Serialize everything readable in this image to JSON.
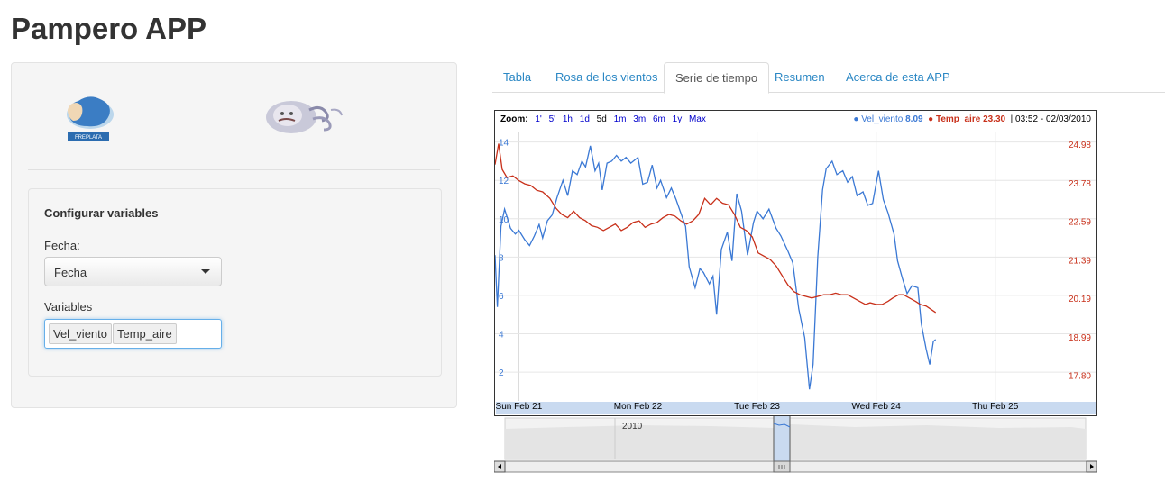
{
  "app": {
    "title": "Pampero APP"
  },
  "sidebar": {
    "logos": [
      {
        "name": "freplata-logo",
        "text": "FREPLATA"
      },
      {
        "name": "pampero-logo"
      }
    ],
    "config": {
      "title": "Configurar variables",
      "fecha_label": "Fecha:",
      "fecha_value": "Fecha",
      "variables_label": "Variables",
      "variables_selected": [
        "Vel_viento",
        "Temp_aire"
      ]
    }
  },
  "tabs": [
    {
      "label": "Tabla",
      "active": false
    },
    {
      "label": "Rosa de los vientos",
      "active": false
    },
    {
      "label": "Serie de tiempo",
      "active": true
    },
    {
      "label": "Resumen",
      "active": false
    },
    {
      "label": "Acerca de esta APP",
      "active": false
    }
  ],
  "chart_data": {
    "type": "line",
    "zoom": {
      "label": "Zoom:",
      "options": [
        "1'",
        "5'",
        "1h",
        "1d",
        "5d",
        "1m",
        "3m",
        "6m",
        "1y",
        "Max"
      ],
      "current": "5d"
    },
    "legend": {
      "series": [
        {
          "name": "Vel_viento",
          "value": "8.09",
          "color": "#3a78d4"
        },
        {
          "name": "Temp_aire",
          "value": "23.30",
          "color": "#c8301a"
        }
      ],
      "timestamp": "03:52 - 02/03/2010"
    },
    "x_labels": [
      "Sun Feb 21",
      "Mon Feb 22",
      "Tue Feb 23",
      "Wed Feb 24",
      "Thu Feb 25"
    ],
    "x_range_days": [
      20.8,
      25.85
    ],
    "y_left": {
      "ticks": [
        2,
        4,
        6,
        8,
        10,
        12,
        14
      ],
      "range": [
        0.5,
        14.5
      ],
      "color": "#3a78d4"
    },
    "y_right": {
      "ticks": [
        "17.80",
        "18.99",
        "20.19",
        "21.39",
        "22.59",
        "23.78",
        "24.98"
      ],
      "range": [
        17.0,
        25.35
      ],
      "color": "#c8301a"
    },
    "grid": true,
    "series": [
      {
        "name": "Vel_viento",
        "axis": "left",
        "color": "#3a78d4",
        "points": [
          [
            20.8,
            8.1
          ],
          [
            20.82,
            5.4
          ],
          [
            20.85,
            9.6
          ],
          [
            20.88,
            10.5
          ],
          [
            20.93,
            9.5
          ],
          [
            20.97,
            9.2
          ],
          [
            21.0,
            9.4
          ],
          [
            21.05,
            8.9
          ],
          [
            21.09,
            8.6
          ],
          [
            21.13,
            9.1
          ],
          [
            21.17,
            9.7
          ],
          [
            21.2,
            9.0
          ],
          [
            21.24,
            9.9
          ],
          [
            21.28,
            10.2
          ],
          [
            21.32,
            11.1
          ],
          [
            21.37,
            12.0
          ],
          [
            21.41,
            11.2
          ],
          [
            21.45,
            12.5
          ],
          [
            21.49,
            12.3
          ],
          [
            21.53,
            13.0
          ],
          [
            21.56,
            12.7
          ],
          [
            21.6,
            13.8
          ],
          [
            21.64,
            12.5
          ],
          [
            21.67,
            12.9
          ],
          [
            21.7,
            11.5
          ],
          [
            21.74,
            12.9
          ],
          [
            21.78,
            13.0
          ],
          [
            21.82,
            13.3
          ],
          [
            21.86,
            13.0
          ],
          [
            21.9,
            13.2
          ],
          [
            21.94,
            12.9
          ],
          [
            22.0,
            13.2
          ],
          [
            22.04,
            11.8
          ],
          [
            22.08,
            11.9
          ],
          [
            22.12,
            12.8
          ],
          [
            22.16,
            11.6
          ],
          [
            22.19,
            12.0
          ],
          [
            22.24,
            11.1
          ],
          [
            22.28,
            11.6
          ],
          [
            22.32,
            11.0
          ],
          [
            22.36,
            10.3
          ],
          [
            22.4,
            9.6
          ],
          [
            22.43,
            7.5
          ],
          [
            22.48,
            6.4
          ],
          [
            22.52,
            7.4
          ],
          [
            22.55,
            7.2
          ],
          [
            22.6,
            6.6
          ],
          [
            22.63,
            7.0
          ],
          [
            22.66,
            5.0
          ],
          [
            22.7,
            8.4
          ],
          [
            22.75,
            9.3
          ],
          [
            22.79,
            7.8
          ],
          [
            22.83,
            11.3
          ],
          [
            22.87,
            10.4
          ],
          [
            22.92,
            8.1
          ],
          [
            22.97,
            9.8
          ],
          [
            23.0,
            10.4
          ],
          [
            23.05,
            10.0
          ],
          [
            23.1,
            10.5
          ],
          [
            23.16,
            9.5
          ],
          [
            23.2,
            9.1
          ],
          [
            23.26,
            8.3
          ],
          [
            23.3,
            7.7
          ],
          [
            23.35,
            5.3
          ],
          [
            23.4,
            3.8
          ],
          [
            23.44,
            1.1
          ],
          [
            23.47,
            2.4
          ],
          [
            23.51,
            8.0
          ],
          [
            23.55,
            11.5
          ],
          [
            23.58,
            12.6
          ],
          [
            23.63,
            13.0
          ],
          [
            23.67,
            12.3
          ],
          [
            23.72,
            12.5
          ],
          [
            23.76,
            11.9
          ],
          [
            23.8,
            12.2
          ],
          [
            23.84,
            11.2
          ],
          [
            23.89,
            11.4
          ],
          [
            23.93,
            10.7
          ],
          [
            23.97,
            10.8
          ],
          [
            24.02,
            12.5
          ],
          [
            24.06,
            11.0
          ],
          [
            24.1,
            10.3
          ],
          [
            24.15,
            9.2
          ],
          [
            24.18,
            7.8
          ],
          [
            24.22,
            6.9
          ],
          [
            24.26,
            6.1
          ],
          [
            24.3,
            6.5
          ],
          [
            24.35,
            6.4
          ],
          [
            24.38,
            4.5
          ],
          [
            24.42,
            3.2
          ],
          [
            24.45,
            2.4
          ],
          [
            24.48,
            3.6
          ],
          [
            24.5,
            3.7
          ]
        ]
      },
      {
        "name": "Temp_aire",
        "axis": "right",
        "color": "#c8301a",
        "points": [
          [
            20.8,
            24.35
          ],
          [
            20.83,
            25.0
          ],
          [
            20.86,
            24.2
          ],
          [
            20.9,
            23.95
          ],
          [
            20.95,
            24.0
          ],
          [
            21.0,
            23.85
          ],
          [
            21.05,
            23.75
          ],
          [
            21.1,
            23.7
          ],
          [
            21.15,
            23.55
          ],
          [
            21.2,
            23.5
          ],
          [
            21.26,
            23.3
          ],
          [
            21.31,
            23.0
          ],
          [
            21.36,
            22.8
          ],
          [
            21.41,
            22.7
          ],
          [
            21.46,
            22.9
          ],
          [
            21.51,
            22.7
          ],
          [
            21.56,
            22.6
          ],
          [
            21.61,
            22.45
          ],
          [
            21.66,
            22.4
          ],
          [
            21.71,
            22.3
          ],
          [
            21.76,
            22.4
          ],
          [
            21.81,
            22.5
          ],
          [
            21.86,
            22.3
          ],
          [
            21.91,
            22.4
          ],
          [
            21.96,
            22.55
          ],
          [
            22.01,
            22.6
          ],
          [
            22.06,
            22.4
          ],
          [
            22.11,
            22.5
          ],
          [
            22.16,
            22.55
          ],
          [
            22.21,
            22.7
          ],
          [
            22.26,
            22.8
          ],
          [
            22.31,
            22.75
          ],
          [
            22.36,
            22.6
          ],
          [
            22.41,
            22.5
          ],
          [
            22.46,
            22.6
          ],
          [
            22.51,
            22.8
          ],
          [
            22.56,
            23.3
          ],
          [
            22.61,
            23.1
          ],
          [
            22.66,
            23.3
          ],
          [
            22.71,
            23.15
          ],
          [
            22.76,
            23.1
          ],
          [
            22.81,
            22.8
          ],
          [
            22.86,
            22.4
          ],
          [
            22.91,
            22.3
          ],
          [
            22.96,
            22.1
          ],
          [
            23.01,
            21.6
          ],
          [
            23.06,
            21.5
          ],
          [
            23.11,
            21.4
          ],
          [
            23.16,
            21.2
          ],
          [
            23.21,
            20.9
          ],
          [
            23.26,
            20.6
          ],
          [
            23.31,
            20.4
          ],
          [
            23.36,
            20.3
          ],
          [
            23.41,
            20.25
          ],
          [
            23.46,
            20.2
          ],
          [
            23.51,
            20.25
          ],
          [
            23.56,
            20.3
          ],
          [
            23.61,
            20.3
          ],
          [
            23.66,
            20.35
          ],
          [
            23.71,
            20.3
          ],
          [
            23.76,
            20.3
          ],
          [
            23.81,
            20.2
          ],
          [
            23.86,
            20.1
          ],
          [
            23.91,
            20.0
          ],
          [
            23.95,
            20.05
          ],
          [
            24.0,
            20.0
          ],
          [
            24.05,
            20.0
          ],
          [
            24.1,
            20.1
          ],
          [
            24.14,
            20.2
          ],
          [
            24.19,
            20.3
          ],
          [
            24.23,
            20.3
          ],
          [
            24.28,
            20.2
          ],
          [
            24.33,
            20.1
          ],
          [
            24.37,
            20.0
          ],
          [
            24.42,
            19.95
          ],
          [
            24.46,
            19.85
          ],
          [
            24.5,
            19.75
          ]
        ]
      }
    ]
  }
}
